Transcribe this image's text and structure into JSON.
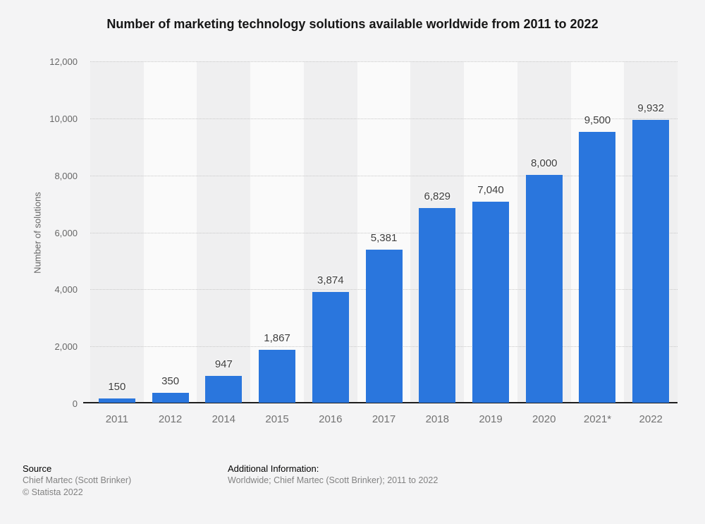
{
  "title": "Number of marketing technology solutions available worldwide from 2011 to 2022",
  "chart_data": {
    "type": "bar",
    "title": "Number of marketing technology solutions available worldwide from 2011 to 2022",
    "categories": [
      "2011",
      "2012",
      "2014",
      "2015",
      "2016",
      "2017",
      "2018",
      "2019",
      "2020",
      "2021*",
      "2022"
    ],
    "values": [
      150,
      350,
      947,
      1867,
      3874,
      5381,
      6829,
      7040,
      8000,
      9500,
      9932
    ],
    "value_labels": [
      "150",
      "350",
      "947",
      "1,867",
      "3,874",
      "5,381",
      "6,829",
      "7,040",
      "8,000",
      "9,500",
      "9,932"
    ],
    "xlabel": "",
    "ylabel": "Number of solutions",
    "ylim": [
      0,
      12000
    ],
    "ytick_step": 2000,
    "ytick_labels": [
      "0",
      "2,000",
      "4,000",
      "6,000",
      "8,000",
      "10,000",
      "12,000"
    ],
    "grid": "horizontal dotted gridlines",
    "legend": "none",
    "plot_background": "alternating vertical bands per category"
  },
  "colors": {
    "bar": "#2a76dd",
    "page_background": "#f4f4f5",
    "band_dark": "#efeff0",
    "band_light": "#fafafa",
    "gridline": "#c8c8c8",
    "axis_line": "#1e1e1e",
    "title_text": "#161616",
    "tick_text": "#666666",
    "value_label_text": "#3d3d3d",
    "footer_text": "#828282"
  },
  "footer": {
    "source_heading": "Source",
    "source_line1": "Chief Martec (Scott Brinker)",
    "source_line2": "© Statista 2022",
    "additional_heading": "Additional Information:",
    "additional_text": "Worldwide; Chief Martec (Scott Brinker); 2011 to 2022"
  }
}
